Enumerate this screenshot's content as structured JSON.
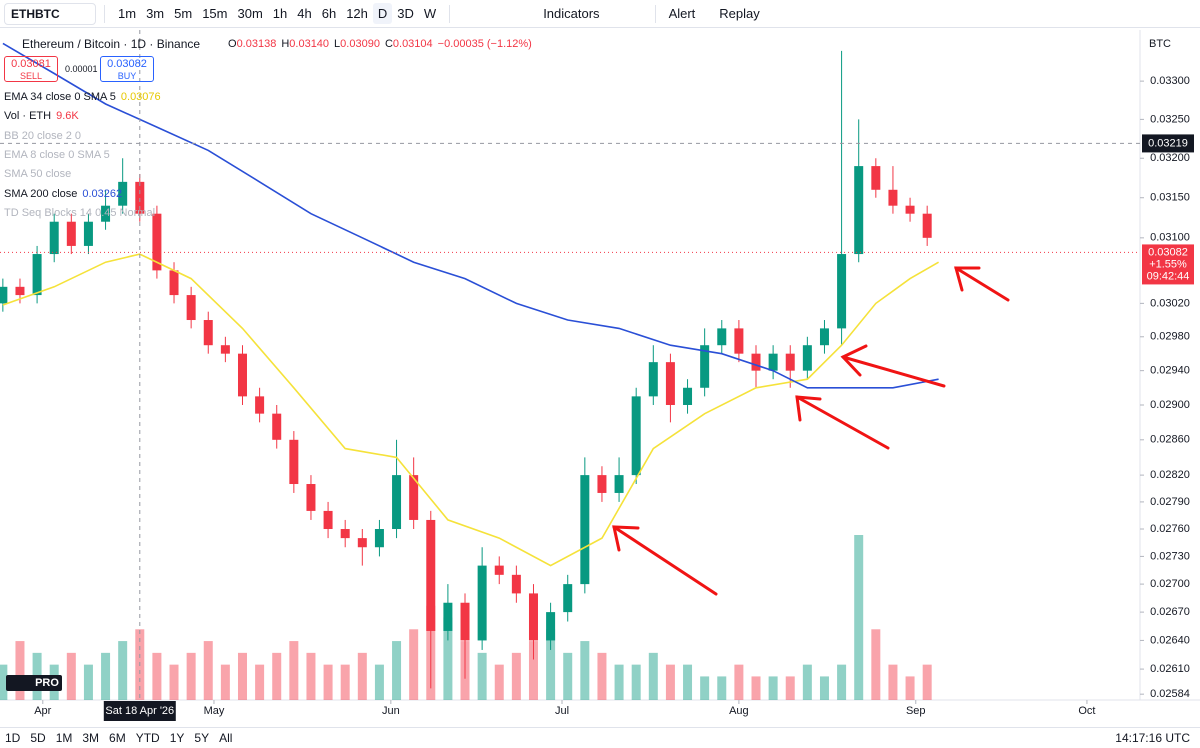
{
  "toolbar": {
    "symbol": "ETHBTC",
    "intervals": [
      "1m",
      "3m",
      "5m",
      "15m",
      "30m",
      "1h",
      "4h",
      "6h",
      "12h",
      "D",
      "3D",
      "W"
    ],
    "indicators": "Indicators",
    "alert": "Alert",
    "replay": "Replay"
  },
  "legend": {
    "title": "Ethereum / Bitcoin · 1D · Binance",
    "ohlc": [
      [
        "O",
        "0.03138"
      ],
      [
        "H",
        "0.03140"
      ],
      [
        "L",
        "0.03090"
      ],
      [
        "C",
        "0.03104"
      ]
    ],
    "change": "−0.00035 (−1.12%)",
    "sell": {
      "price": "0.03081",
      "label": "SELL"
    },
    "spread": "0.00001",
    "buy": {
      "price": "0.03082",
      "label": "BUY"
    },
    "indicators": [
      {
        "name": "EMA 34 close 0 SMA 5",
        "value": "0.03076",
        "color": "#e6c800"
      },
      {
        "name": "Vol · ETH",
        "value": "9.6K",
        "color": "#f23645"
      },
      {
        "name": "BB 20 close 2 0"
      },
      {
        "name": "EMA 8 close 0 SMA 5"
      },
      {
        "name": "SMA 50 close"
      },
      {
        "name": "SMA 200 close",
        "value": "0.03262",
        "color": "#2a4fd6"
      },
      {
        "name": "TD Seq Blocks 14 0.45 Normal"
      }
    ]
  },
  "price_axis": {
    "currency": "BTC",
    "crosshair_price": "0.03219",
    "last_price": "0.03082",
    "last_change": "+1.55%",
    "countdown": "09:42:44"
  },
  "time_axis": {
    "crosshair_label": "Sat 18 Apr '26"
  },
  "bottom_bar": {
    "ranges": [
      "1D",
      "5D",
      "1M",
      "3M",
      "6M",
      "YTD",
      "1Y",
      "5Y",
      "All"
    ],
    "clock": "14:17:16 UTC"
  },
  "logo": "PRO",
  "chart_data": {
    "type": "candlestick",
    "log_scale": true,
    "grid": false,
    "up_color": "#089981",
    "down_color": "#f23645",
    "xlim": [
      -7.5,
      192.3
    ],
    "ylim": [
      0.02578,
      0.03368
    ],
    "xticks": [
      {
        "value": 0,
        "label": "Apr"
      },
      {
        "value": 30,
        "label": "May"
      },
      {
        "value": 61,
        "label": "Jun"
      },
      {
        "value": 91,
        "label": "Jul"
      },
      {
        "value": 122,
        "label": "Aug"
      },
      {
        "value": 153,
        "label": "Sep"
      },
      {
        "value": 183,
        "label": "Oct"
      }
    ],
    "yticks": [
      {
        "value": 0.033,
        "label": "0.03300"
      },
      {
        "value": 0.0325,
        "label": "0.03250"
      },
      {
        "value": 0.032,
        "label": "0.03200"
      },
      {
        "value": 0.0315,
        "label": "0.03150"
      },
      {
        "value": 0.031,
        "label": "0.03100"
      },
      {
        "value": 0.0302,
        "label": "0.03020"
      },
      {
        "value": 0.0298,
        "label": "0.02980"
      },
      {
        "value": 0.0294,
        "label": "0.02940"
      },
      {
        "value": 0.029,
        "label": "0.02900"
      },
      {
        "value": 0.0286,
        "label": "0.02860"
      },
      {
        "value": 0.0282,
        "label": "0.02820"
      },
      {
        "value": 0.0279,
        "label": "0.02790"
      },
      {
        "value": 0.0276,
        "label": "0.02760"
      },
      {
        "value": 0.0273,
        "label": "0.02730"
      },
      {
        "value": 0.027,
        "label": "0.02700"
      },
      {
        "value": 0.0267,
        "label": "0.02670"
      },
      {
        "value": 0.0264,
        "label": "0.02640"
      },
      {
        "value": 0.0261,
        "label": "0.02610"
      },
      {
        "value": 0.02584,
        "label": "0.02584"
      }
    ],
    "crosshair": {
      "x": 17,
      "y": 0.03219
    },
    "last_price": 0.03082,
    "x": [
      -7,
      -4,
      -1,
      2,
      5,
      8,
      11,
      14,
      17,
      20,
      23,
      26,
      29,
      32,
      35,
      38,
      41,
      44,
      47,
      50,
      53,
      56,
      59,
      62,
      65,
      68,
      71,
      74,
      77,
      80,
      83,
      86,
      89,
      92,
      95,
      98,
      101,
      104,
      107,
      110,
      113,
      116,
      119,
      122,
      125,
      128,
      131,
      134,
      137,
      140,
      143,
      146,
      149,
      152,
      155
    ],
    "open": [
      0.0302,
      0.0304,
      0.0303,
      0.0308,
      0.0312,
      0.0309,
      0.0312,
      0.0314,
      0.0317,
      0.0313,
      0.0306,
      0.0303,
      0.03,
      0.0297,
      0.0296,
      0.0291,
      0.0289,
      0.0286,
      0.0281,
      0.0278,
      0.0276,
      0.0275,
      0.0274,
      0.0276,
      0.0282,
      0.0277,
      0.0265,
      0.0268,
      0.0264,
      0.0272,
      0.0271,
      0.0269,
      0.0264,
      0.0267,
      0.027,
      0.0282,
      0.028,
      0.0282,
      0.0291,
      0.0295,
      0.029,
      0.0292,
      0.0297,
      0.0299,
      0.0296,
      0.0294,
      0.0296,
      0.0294,
      0.0297,
      0.0299,
      0.0308,
      0.0319,
      0.0316,
      0.0314,
      0.0313
    ],
    "high": [
      0.0305,
      0.0305,
      0.0309,
      0.0313,
      0.0313,
      0.0313,
      0.0316,
      0.032,
      0.0318,
      0.0314,
      0.0307,
      0.0304,
      0.0301,
      0.0298,
      0.0297,
      0.0292,
      0.029,
      0.0287,
      0.0282,
      0.0279,
      0.0277,
      0.0276,
      0.0277,
      0.0286,
      0.0284,
      0.0278,
      0.027,
      0.0269,
      0.0274,
      0.0273,
      0.0272,
      0.027,
      0.0268,
      0.0271,
      0.0284,
      0.0283,
      0.0284,
      0.0292,
      0.0297,
      0.0296,
      0.0293,
      0.0299,
      0.03,
      0.03,
      0.0297,
      0.0297,
      0.0297,
      0.0298,
      0.03,
      0.0334,
      0.0325,
      0.032,
      0.0319,
      0.0315,
      0.0314
    ],
    "low": [
      0.0301,
      0.0302,
      0.0302,
      0.0307,
      0.0308,
      0.0308,
      0.0311,
      0.0313,
      0.0312,
      0.0305,
      0.0302,
      0.0299,
      0.0296,
      0.0295,
      0.029,
      0.0288,
      0.0285,
      0.028,
      0.0277,
      0.0275,
      0.0274,
      0.0272,
      0.0273,
      0.0275,
      0.0276,
      0.0259,
      0.0264,
      0.026,
      0.0263,
      0.027,
      0.0268,
      0.0262,
      0.0263,
      0.0266,
      0.0269,
      0.0279,
      0.0279,
      0.0281,
      0.029,
      0.0288,
      0.0289,
      0.0291,
      0.0296,
      0.0295,
      0.0292,
      0.0293,
      0.0292,
      0.0293,
      0.0296,
      0.0297,
      0.0307,
      0.0315,
      0.0313,
      0.0312,
      0.0309
    ],
    "close": [
      0.0304,
      0.0303,
      0.0308,
      0.0312,
      0.0309,
      0.0312,
      0.0314,
      0.0317,
      0.0313,
      0.0306,
      0.0303,
      0.03,
      0.0297,
      0.0296,
      0.0291,
      0.0289,
      0.0286,
      0.0281,
      0.0278,
      0.0276,
      0.0275,
      0.0274,
      0.0276,
      0.0282,
      0.0277,
      0.0265,
      0.0268,
      0.0264,
      0.0272,
      0.0271,
      0.0269,
      0.0264,
      0.0267,
      0.027,
      0.0282,
      0.028,
      0.0282,
      0.0291,
      0.0295,
      0.029,
      0.0292,
      0.0297,
      0.0299,
      0.0296,
      0.0294,
      0.0296,
      0.0294,
      0.0297,
      0.0299,
      0.0308,
      0.0319,
      0.0316,
      0.0314,
      0.0313,
      0.031
    ],
    "volume": [
      3,
      5,
      4,
      3,
      4,
      3,
      4,
      5,
      6,
      4,
      3,
      4,
      5,
      3,
      4,
      3,
      4,
      5,
      4,
      3,
      3,
      4,
      3,
      5,
      6,
      8,
      7,
      5,
      4,
      3,
      4,
      5,
      6,
      4,
      5,
      4,
      3,
      3,
      4,
      3,
      3,
      2,
      2,
      3,
      2,
      2,
      2,
      3,
      2,
      3,
      14,
      6,
      3,
      2,
      3
    ],
    "lines": [
      {
        "color": "#f5e23a",
        "x": [
          -7,
          2,
          11,
          17,
          26,
          35,
          44,
          53,
          62,
          71,
          80,
          89,
          98,
          107,
          116,
          125,
          134,
          140,
          146,
          152,
          157
        ],
        "values": [
          0.03018,
          0.0304,
          0.0307,
          0.0308,
          0.0305,
          0.0299,
          0.0292,
          0.0285,
          0.0284,
          0.0277,
          0.0275,
          0.0272,
          0.0275,
          0.0285,
          0.0289,
          0.0292,
          0.0293,
          0.0297,
          0.0302,
          0.0305,
          0.0307
        ]
      },
      {
        "color": "#2a4fd6",
        "x": [
          -7,
          2,
          11,
          20,
          29,
          38,
          47,
          56,
          65,
          74,
          83,
          92,
          101,
          110,
          119,
          128,
          134,
          140,
          149,
          157
        ],
        "values": [
          0.0335,
          0.0331,
          0.0327,
          0.0324,
          0.0321,
          0.0317,
          0.0313,
          0.031,
          0.0307,
          0.0305,
          0.0302,
          0.03,
          0.0299,
          0.0297,
          0.0296,
          0.0294,
          0.0292,
          0.0292,
          0.0292,
          0.0293
        ]
      }
    ]
  }
}
